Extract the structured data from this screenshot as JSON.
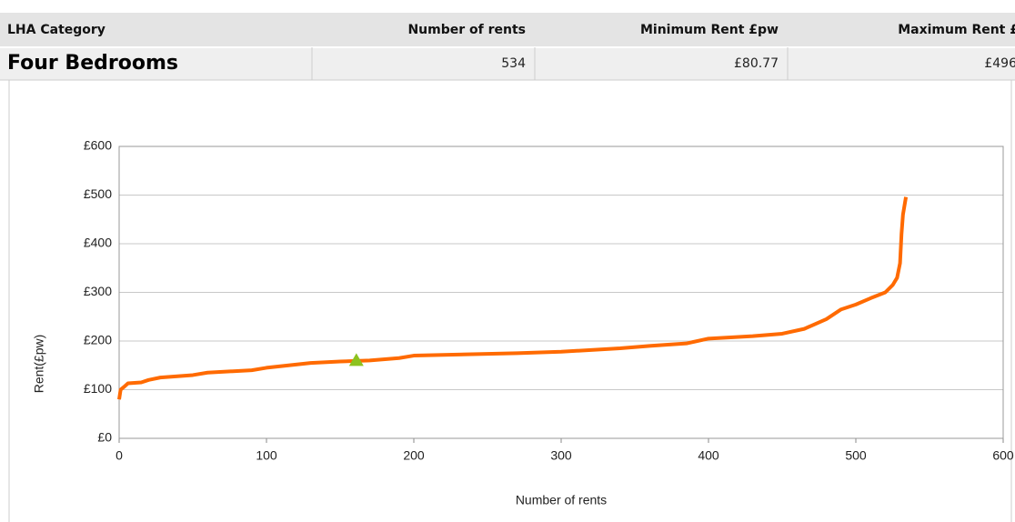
{
  "table": {
    "headers": [
      "LHA Category",
      "Number of rents",
      "Minimum Rent £pw",
      "Maximum Rent £"
    ],
    "rows": [
      [
        "Four Bedrooms",
        "534",
        "£80.77",
        "£496"
      ]
    ]
  },
  "chart_data": {
    "type": "line",
    "x_label": "Number of rents",
    "y_label": "Rent(£pw)",
    "xlim": [
      0,
      600
    ],
    "xticks": [
      0,
      100,
      200,
      300,
      400,
      500,
      600
    ],
    "ylim": [
      0,
      600
    ],
    "yticks": [
      {
        "value": 0,
        "label": "£0"
      },
      {
        "value": 100,
        "label": "£100"
      },
      {
        "value": 200,
        "label": "£200"
      },
      {
        "value": 300,
        "label": "£300"
      },
      {
        "value": 400,
        "label": "£400"
      },
      {
        "value": 500,
        "label": "£500"
      },
      {
        "value": 600,
        "label": "£600"
      }
    ],
    "grid": true,
    "series": [
      {
        "color": "#ff6a00",
        "marker": "none",
        "x": [
          0,
          1,
          3,
          6,
          15,
          20,
          28,
          50,
          60,
          90,
          100,
          130,
          150,
          170,
          190,
          200,
          270,
          300,
          340,
          360,
          385,
          400,
          430,
          450,
          465,
          480,
          490,
          500,
          510,
          520,
          525,
          528,
          530,
          531,
          532,
          534
        ],
        "values": [
          80,
          100,
          105,
          113,
          115,
          120,
          125,
          130,
          135,
          140,
          145,
          155,
          158,
          160,
          165,
          170,
          175,
          178,
          185,
          190,
          195,
          205,
          210,
          215,
          225,
          245,
          265,
          275,
          288,
          300,
          315,
          330,
          360,
          420,
          460,
          496
        ]
      },
      {
        "color": "#8dc21f",
        "marker": "triangle",
        "x": [
          161
        ],
        "values": [
          160
        ]
      }
    ]
  }
}
